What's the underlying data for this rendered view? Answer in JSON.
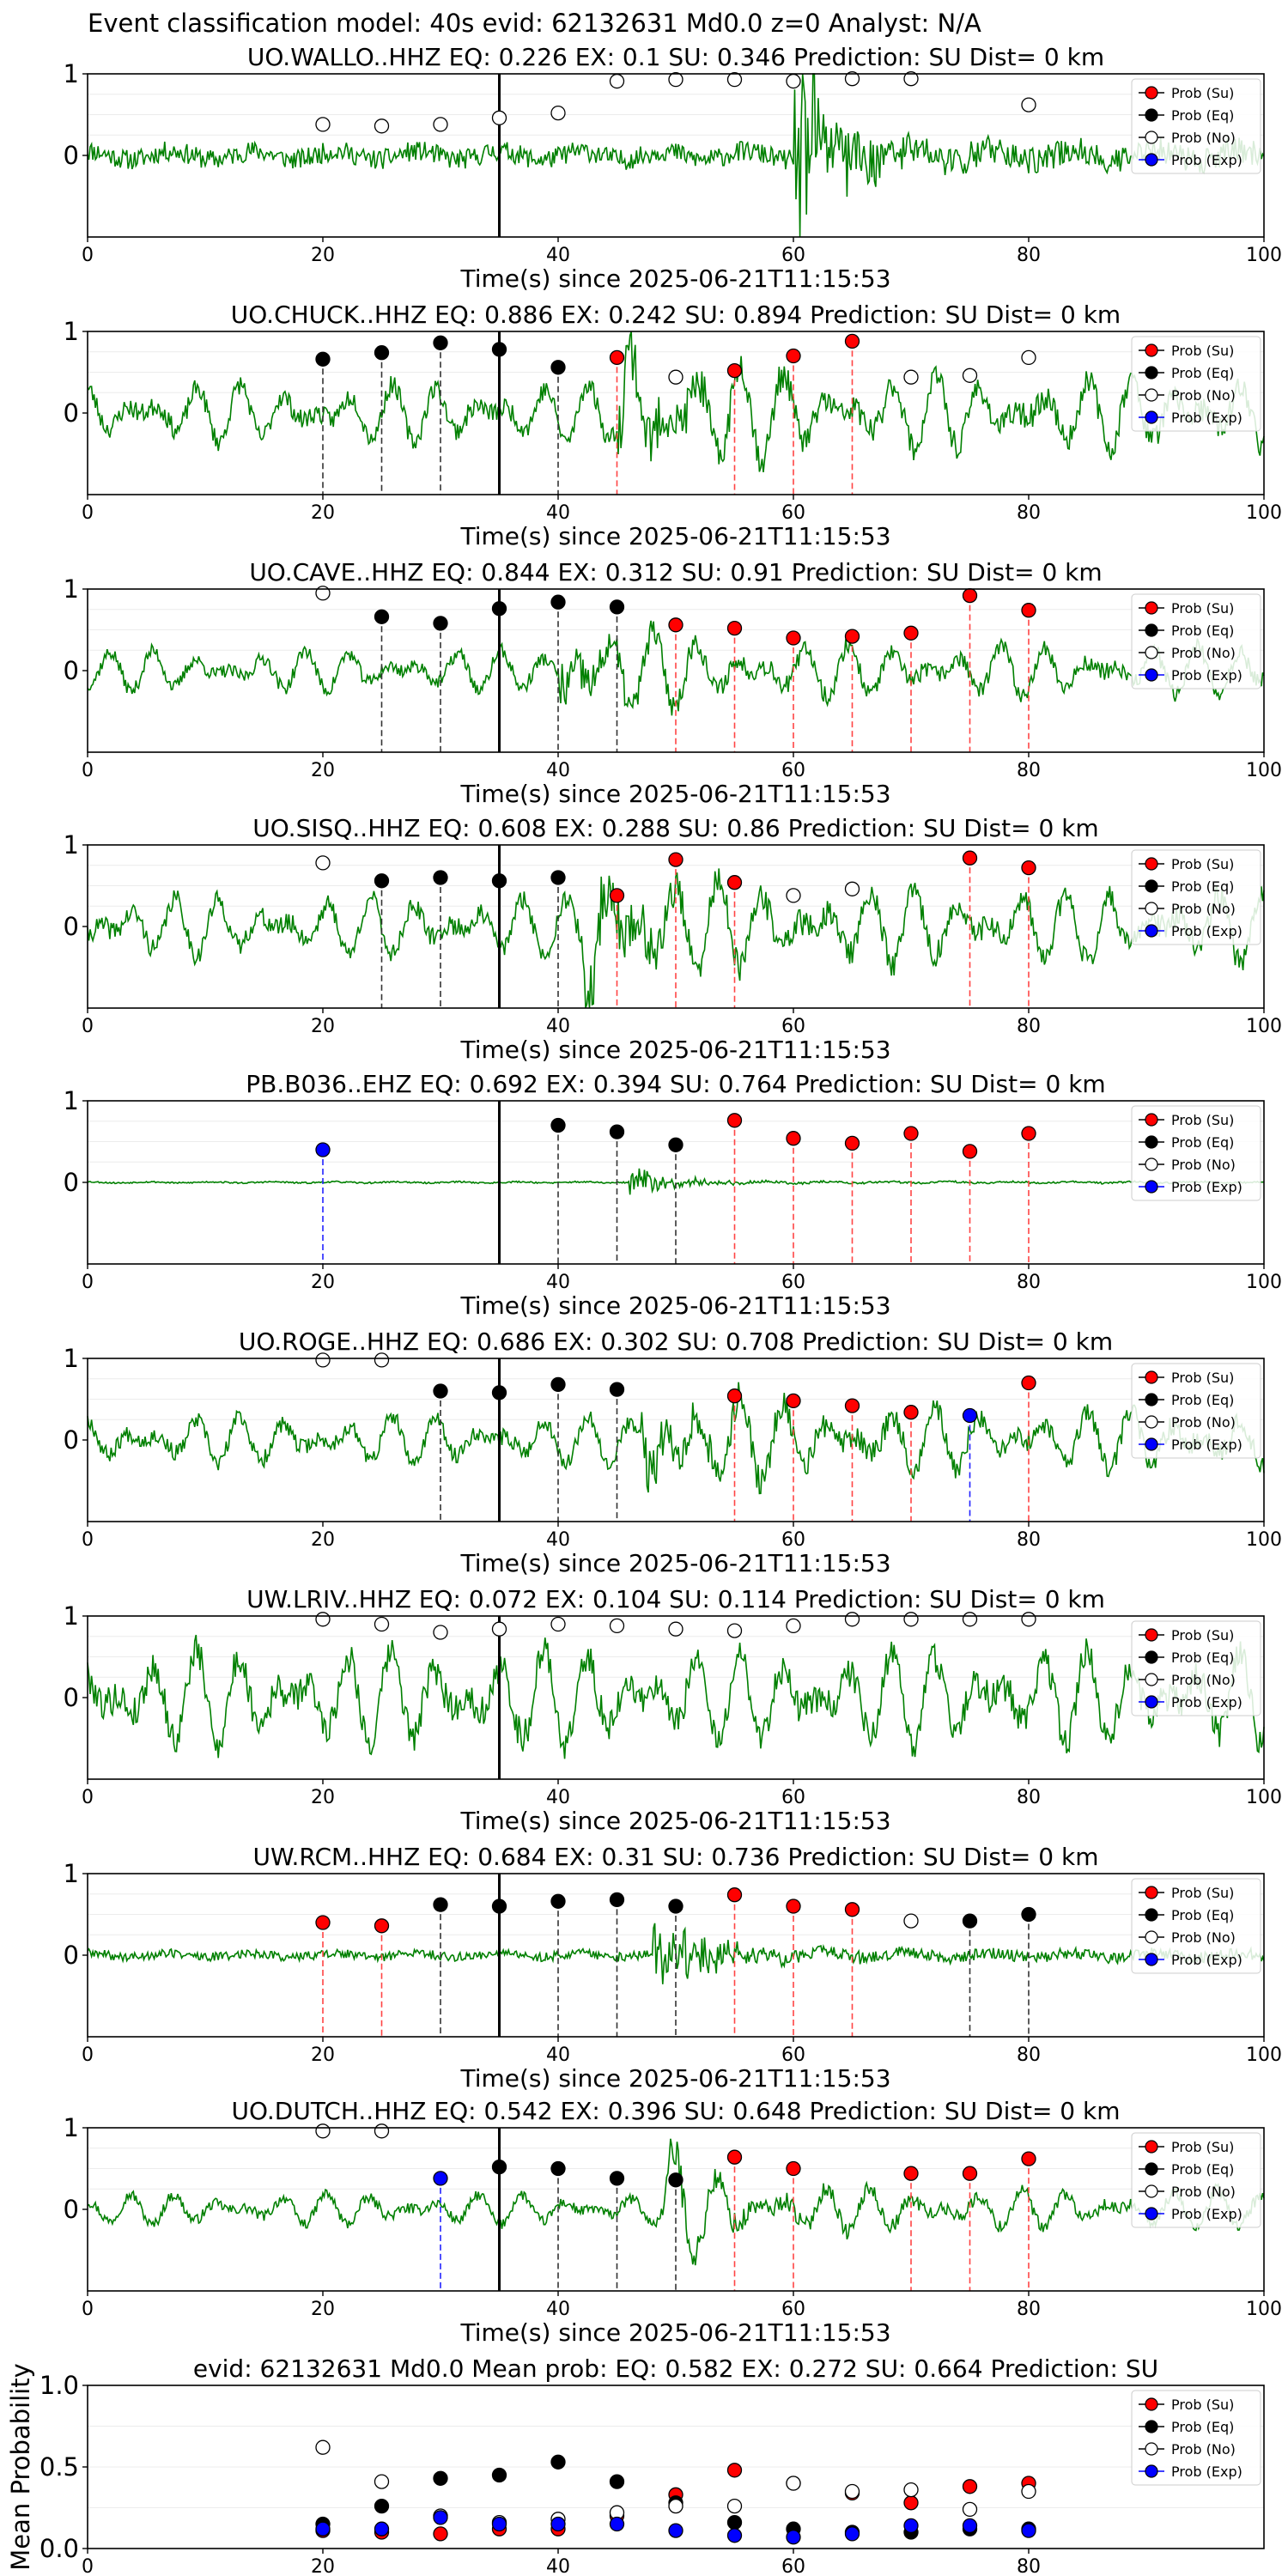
{
  "figure_title": "Event classification model: 40s evid: 62132631 Md0.0 z=0 Analyst: N/A",
  "colors": {
    "su": "#ff0000",
    "eq": "#000000",
    "no": "#ffffff",
    "exp": "#0000ff",
    "waveform": "#008000"
  },
  "legend": [
    {
      "key": "su",
      "label": "Prob (Su)"
    },
    {
      "key": "eq",
      "label": "Prob (Eq)"
    },
    {
      "key": "no",
      "label": "Prob (No)"
    },
    {
      "key": "exp",
      "label": "Prob (Exp)"
    }
  ],
  "chart_data": [
    {
      "type": "scatter",
      "title": "UO.WALLO..HHZ   EQ: 0.226  EX: 0.1  SU: 0.346   Prediction: SU    Dist= 0 km",
      "xlabel": "Time(s) since 2025-06-21T11:15:53",
      "xlim": [
        0,
        100
      ],
      "ylim": [
        -1,
        1
      ],
      "xticks": [
        "0",
        "20",
        "40",
        "60",
        "80",
        "100"
      ],
      "yticks": [
        "1",
        "0"
      ],
      "event_marker_x": 35,
      "legend_keys": [
        "su",
        "eq",
        "no",
        "exp"
      ],
      "waveform": {
        "amp": 0.22,
        "seed": 11,
        "style": "noisy",
        "burst_at": 60
      },
      "points": [
        {
          "x": 20,
          "y": 0.38,
          "cls": "no"
        },
        {
          "x": 25,
          "y": 0.36,
          "cls": "no"
        },
        {
          "x": 30,
          "y": 0.38,
          "cls": "no"
        },
        {
          "x": 35,
          "y": 0.46,
          "cls": "no"
        },
        {
          "x": 40,
          "y": 0.52,
          "cls": "no"
        },
        {
          "x": 45,
          "y": 0.91,
          "cls": "no"
        },
        {
          "x": 50,
          "y": 0.93,
          "cls": "no"
        },
        {
          "x": 55,
          "y": 0.93,
          "cls": "no"
        },
        {
          "x": 60,
          "y": 0.91,
          "cls": "no"
        },
        {
          "x": 65,
          "y": 0.94,
          "cls": "no"
        },
        {
          "x": 70,
          "y": 0.94,
          "cls": "no"
        },
        {
          "x": 80,
          "y": 0.62,
          "cls": "no"
        }
      ]
    },
    {
      "type": "scatter",
      "title": "UO.CHUCK..HHZ   EQ: 0.886  EX: 0.242  SU: 0.894   Prediction: SU    Dist= 0 km",
      "xlabel": "Time(s) since 2025-06-21T11:15:53",
      "xlim": [
        0,
        100
      ],
      "ylim": [
        -1,
        1
      ],
      "xticks": [
        "0",
        "20",
        "40",
        "60",
        "80",
        "100"
      ],
      "yticks": [
        "1",
        "0"
      ],
      "event_marker_x": 35,
      "legend_keys": [
        "su",
        "eq",
        "no",
        "exp"
      ],
      "waveform": {
        "amp": 0.6,
        "seed": 23,
        "style": "wavy",
        "burst_at": 45
      },
      "points": [
        {
          "x": 20,
          "y": 0.66,
          "cls": "eq"
        },
        {
          "x": 25,
          "y": 0.74,
          "cls": "eq"
        },
        {
          "x": 30,
          "y": 0.86,
          "cls": "eq"
        },
        {
          "x": 35,
          "y": 0.78,
          "cls": "eq"
        },
        {
          "x": 40,
          "y": 0.56,
          "cls": "eq"
        },
        {
          "x": 45,
          "y": 0.68,
          "cls": "su"
        },
        {
          "x": 50,
          "y": 0.44,
          "cls": "no"
        },
        {
          "x": 55,
          "y": 0.52,
          "cls": "su"
        },
        {
          "x": 60,
          "y": 0.7,
          "cls": "su"
        },
        {
          "x": 65,
          "y": 0.88,
          "cls": "su"
        },
        {
          "x": 70,
          "y": 0.44,
          "cls": "no"
        },
        {
          "x": 75,
          "y": 0.46,
          "cls": "no"
        },
        {
          "x": 80,
          "y": 0.68,
          "cls": "no"
        }
      ]
    },
    {
      "type": "scatter",
      "title": "UO.CAVE..HHZ   EQ: 0.844  EX: 0.312  SU: 0.91   Prediction: SU    Dist= 0 km",
      "xlabel": "Time(s) since 2025-06-21T11:15:53",
      "xlim": [
        0,
        100
      ],
      "ylim": [
        -1,
        1
      ],
      "xticks": [
        "0",
        "20",
        "40",
        "60",
        "80",
        "100"
      ],
      "yticks": [
        "1",
        "0"
      ],
      "event_marker_x": 35,
      "legend_keys": [
        "su",
        "eq",
        "no",
        "exp"
      ],
      "waveform": {
        "amp": 0.42,
        "seed": 37,
        "style": "wavy",
        "burst_at": 40
      },
      "points": [
        {
          "x": 20,
          "y": 0.95,
          "cls": "no"
        },
        {
          "x": 25,
          "y": 0.66,
          "cls": "eq"
        },
        {
          "x": 30,
          "y": 0.58,
          "cls": "eq"
        },
        {
          "x": 35,
          "y": 0.76,
          "cls": "eq"
        },
        {
          "x": 40,
          "y": 0.84,
          "cls": "eq"
        },
        {
          "x": 45,
          "y": 0.78,
          "cls": "eq"
        },
        {
          "x": 50,
          "y": 0.56,
          "cls": "su"
        },
        {
          "x": 55,
          "y": 0.52,
          "cls": "su"
        },
        {
          "x": 60,
          "y": 0.4,
          "cls": "su"
        },
        {
          "x": 65,
          "y": 0.42,
          "cls": "su"
        },
        {
          "x": 70,
          "y": 0.46,
          "cls": "su"
        },
        {
          "x": 75,
          "y": 0.92,
          "cls": "su"
        },
        {
          "x": 80,
          "y": 0.74,
          "cls": "su"
        }
      ]
    },
    {
      "type": "scatter",
      "title": "UO.SISQ..HHZ   EQ: 0.608  EX: 0.288  SU: 0.86   Prediction: SU    Dist= 0 km",
      "xlabel": "Time(s) since 2025-06-21T11:15:53",
      "xlim": [
        0,
        100
      ],
      "ylim": [
        -1,
        1
      ],
      "xticks": [
        "0",
        "20",
        "40",
        "60",
        "80",
        "100"
      ],
      "yticks": [
        "1",
        "0"
      ],
      "event_marker_x": 35,
      "legend_keys": [
        "su",
        "eq",
        "no",
        "exp"
      ],
      "waveform": {
        "amp": 0.6,
        "seed": 41,
        "style": "wavy",
        "burst_at": 42
      },
      "points": [
        {
          "x": 20,
          "y": 0.78,
          "cls": "no"
        },
        {
          "x": 25,
          "y": 0.56,
          "cls": "eq"
        },
        {
          "x": 30,
          "y": 0.6,
          "cls": "eq"
        },
        {
          "x": 35,
          "y": 0.56,
          "cls": "eq"
        },
        {
          "x": 40,
          "y": 0.6,
          "cls": "eq"
        },
        {
          "x": 45,
          "y": 0.38,
          "cls": "su"
        },
        {
          "x": 50,
          "y": 0.82,
          "cls": "su"
        },
        {
          "x": 55,
          "y": 0.54,
          "cls": "su"
        },
        {
          "x": 60,
          "y": 0.38,
          "cls": "no"
        },
        {
          "x": 65,
          "y": 0.46,
          "cls": "no"
        },
        {
          "x": 75,
          "y": 0.84,
          "cls": "su"
        },
        {
          "x": 80,
          "y": 0.72,
          "cls": "su"
        }
      ]
    },
    {
      "type": "scatter",
      "title": "PB.B036..EHZ   EQ: 0.692  EX: 0.394  SU: 0.764   Prediction: SU    Dist= 0 km",
      "xlabel": "Time(s) since 2025-06-21T11:15:53",
      "xlim": [
        0,
        100
      ],
      "ylim": [
        -1,
        1
      ],
      "xticks": [
        "0",
        "20",
        "40",
        "60",
        "80",
        "100"
      ],
      "yticks": [
        "1",
        "0"
      ],
      "event_marker_x": 35,
      "legend_keys": [
        "su",
        "eq",
        "no",
        "exp"
      ],
      "waveform": {
        "amp": 0.04,
        "seed": 53,
        "style": "flat",
        "burst_at": 46
      },
      "points": [
        {
          "x": 20,
          "y": 0.4,
          "cls": "exp"
        },
        {
          "x": 40,
          "y": 0.7,
          "cls": "eq"
        },
        {
          "x": 45,
          "y": 0.62,
          "cls": "eq"
        },
        {
          "x": 50,
          "y": 0.46,
          "cls": "eq"
        },
        {
          "x": 55,
          "y": 0.76,
          "cls": "su"
        },
        {
          "x": 60,
          "y": 0.54,
          "cls": "su"
        },
        {
          "x": 65,
          "y": 0.48,
          "cls": "su"
        },
        {
          "x": 70,
          "y": 0.6,
          "cls": "su"
        },
        {
          "x": 75,
          "y": 0.38,
          "cls": "su"
        },
        {
          "x": 80,
          "y": 0.6,
          "cls": "su"
        }
      ]
    },
    {
      "type": "scatter",
      "title": "UO.ROGE..HHZ   EQ: 0.686  EX: 0.302  SU: 0.708   Prediction: SU    Dist= 0 km",
      "xlabel": "Time(s) since 2025-06-21T11:15:53",
      "xlim": [
        0,
        100
      ],
      "ylim": [
        -1,
        1
      ],
      "xticks": [
        "0",
        "20",
        "40",
        "60",
        "80",
        "100"
      ],
      "yticks": [
        "1",
        "0"
      ],
      "event_marker_x": 35,
      "legend_keys": [
        "su",
        "eq",
        "no",
        "exp"
      ],
      "waveform": {
        "amp": 0.5,
        "seed": 67,
        "style": "wavy",
        "burst_at": 47
      },
      "points": [
        {
          "x": 20,
          "y": 0.98,
          "cls": "no"
        },
        {
          "x": 25,
          "y": 0.98,
          "cls": "no"
        },
        {
          "x": 30,
          "y": 0.6,
          "cls": "eq"
        },
        {
          "x": 35,
          "y": 0.58,
          "cls": "eq"
        },
        {
          "x": 40,
          "y": 0.68,
          "cls": "eq"
        },
        {
          "x": 45,
          "y": 0.62,
          "cls": "eq"
        },
        {
          "x": 55,
          "y": 0.54,
          "cls": "su"
        },
        {
          "x": 60,
          "y": 0.48,
          "cls": "su"
        },
        {
          "x": 65,
          "y": 0.42,
          "cls": "su"
        },
        {
          "x": 70,
          "y": 0.34,
          "cls": "su"
        },
        {
          "x": 75,
          "y": 0.3,
          "cls": "exp"
        },
        {
          "x": 80,
          "y": 0.7,
          "cls": "su"
        }
      ]
    },
    {
      "type": "scatter",
      "title": "UW.LRIV..HHZ   EQ: 0.072  EX: 0.104  SU: 0.114   Prediction: SU    Dist= 0 km",
      "xlabel": "Time(s) since 2025-06-21T11:15:53",
      "xlim": [
        0,
        100
      ],
      "ylim": [
        -1,
        1
      ],
      "xticks": [
        "0",
        "20",
        "40",
        "60",
        "80",
        "100"
      ],
      "yticks": [
        "1",
        "0"
      ],
      "event_marker_x": 35,
      "legend_keys": [
        "su",
        "eq",
        "no",
        "exp"
      ],
      "waveform": {
        "amp": 0.78,
        "seed": 79,
        "style": "wavy",
        "burst_at": -1
      },
      "points": [
        {
          "x": 20,
          "y": 0.96,
          "cls": "no"
        },
        {
          "x": 25,
          "y": 0.9,
          "cls": "no"
        },
        {
          "x": 30,
          "y": 0.8,
          "cls": "no"
        },
        {
          "x": 35,
          "y": 0.84,
          "cls": "no"
        },
        {
          "x": 40,
          "y": 0.9,
          "cls": "no"
        },
        {
          "x": 45,
          "y": 0.88,
          "cls": "no"
        },
        {
          "x": 50,
          "y": 0.84,
          "cls": "no"
        },
        {
          "x": 55,
          "y": 0.82,
          "cls": "no"
        },
        {
          "x": 60,
          "y": 0.88,
          "cls": "no"
        },
        {
          "x": 65,
          "y": 0.96,
          "cls": "no"
        },
        {
          "x": 70,
          "y": 0.96,
          "cls": "no"
        },
        {
          "x": 75,
          "y": 0.96,
          "cls": "no"
        },
        {
          "x": 80,
          "y": 0.96,
          "cls": "no"
        }
      ]
    },
    {
      "type": "scatter",
      "title": "UW.RCM..HHZ   EQ: 0.684  EX: 0.31  SU: 0.736   Prediction: SU    Dist= 0 km",
      "xlabel": "Time(s) since 2025-06-21T11:15:53",
      "xlim": [
        0,
        100
      ],
      "ylim": [
        -1,
        1
      ],
      "xticks": [
        "0",
        "20",
        "40",
        "60",
        "80",
        "100"
      ],
      "yticks": [
        "1",
        "0"
      ],
      "event_marker_x": 35,
      "legend_keys": [
        "su",
        "eq",
        "no",
        "exp"
      ],
      "waveform": {
        "amp": 0.1,
        "seed": 89,
        "style": "noisy",
        "burst_at": 48
      },
      "points": [
        {
          "x": 20,
          "y": 0.4,
          "cls": "su"
        },
        {
          "x": 25,
          "y": 0.36,
          "cls": "su"
        },
        {
          "x": 30,
          "y": 0.62,
          "cls": "eq"
        },
        {
          "x": 35,
          "y": 0.6,
          "cls": "eq"
        },
        {
          "x": 40,
          "y": 0.66,
          "cls": "eq"
        },
        {
          "x": 45,
          "y": 0.68,
          "cls": "eq"
        },
        {
          "x": 50,
          "y": 0.6,
          "cls": "eq"
        },
        {
          "x": 55,
          "y": 0.74,
          "cls": "su"
        },
        {
          "x": 60,
          "y": 0.6,
          "cls": "su"
        },
        {
          "x": 65,
          "y": 0.56,
          "cls": "su"
        },
        {
          "x": 70,
          "y": 0.42,
          "cls": "no"
        },
        {
          "x": 75,
          "y": 0.42,
          "cls": "eq"
        },
        {
          "x": 80,
          "y": 0.5,
          "cls": "eq"
        }
      ]
    },
    {
      "type": "scatter",
      "title": "UO.DUTCH..HHZ   EQ: 0.542  EX: 0.396  SU: 0.648   Prediction: SU    Dist= 0 km",
      "xlabel": "Time(s) since 2025-06-21T11:15:53",
      "xlim": [
        0,
        100
      ],
      "ylim": [
        -1,
        1
      ],
      "xticks": [
        "0",
        "20",
        "40",
        "60",
        "80",
        "100"
      ],
      "yticks": [
        "1",
        "0"
      ],
      "event_marker_x": 35,
      "legend_keys": [
        "su",
        "eq",
        "no",
        "exp"
      ],
      "waveform": {
        "amp": 0.32,
        "seed": 97,
        "style": "wavy",
        "burst_at": 49
      },
      "points": [
        {
          "x": 20,
          "y": 0.96,
          "cls": "no"
        },
        {
          "x": 25,
          "y": 0.96,
          "cls": "no"
        },
        {
          "x": 30,
          "y": 0.38,
          "cls": "exp"
        },
        {
          "x": 35,
          "y": 0.52,
          "cls": "eq"
        },
        {
          "x": 40,
          "y": 0.5,
          "cls": "eq"
        },
        {
          "x": 45,
          "y": 0.38,
          "cls": "eq"
        },
        {
          "x": 50,
          "y": 0.36,
          "cls": "eq"
        },
        {
          "x": 55,
          "y": 0.64,
          "cls": "su"
        },
        {
          "x": 60,
          "y": 0.5,
          "cls": "su"
        },
        {
          "x": 70,
          "y": 0.44,
          "cls": "su"
        },
        {
          "x": 75,
          "y": 0.44,
          "cls": "su"
        },
        {
          "x": 80,
          "y": 0.62,
          "cls": "su"
        }
      ]
    },
    {
      "type": "scatter",
      "title": "evid: 62132631  Md0.0    Mean prob:    EQ: 0.582  EX: 0.272  SU: 0.664   Prediction: SU",
      "xlabel": "",
      "ylabel": "Mean Probability",
      "xlim": [
        0,
        100
      ],
      "ylim": [
        0,
        1
      ],
      "xticks": [
        "0",
        "20",
        "40",
        "60",
        "80"
      ],
      "yticks": [
        "1.0",
        "0.5",
        "0.0"
      ],
      "legend_keys": [
        "su",
        "eq",
        "no",
        "exp"
      ],
      "series": [
        {
          "name": "Prob (Su)",
          "cls": "su",
          "x": [
            20,
            25,
            30,
            35,
            40,
            45,
            50,
            55,
            60,
            65,
            70,
            75,
            80
          ],
          "values": [
            0.11,
            0.1,
            0.09,
            0.12,
            0.12,
            0.2,
            0.33,
            0.48,
            0.4,
            0.34,
            0.28,
            0.38,
            0.4
          ]
        },
        {
          "name": "Prob (Eq)",
          "cls": "eq",
          "x": [
            20,
            25,
            30,
            35,
            40,
            45,
            50,
            55,
            60,
            65,
            70,
            75,
            80
          ],
          "values": [
            0.15,
            0.26,
            0.43,
            0.45,
            0.53,
            0.41,
            0.28,
            0.16,
            0.12,
            0.1,
            0.1,
            0.12,
            0.12
          ]
        },
        {
          "name": "Prob (No)",
          "cls": "no",
          "x": [
            20,
            25,
            30,
            35,
            40,
            45,
            50,
            55,
            60,
            65,
            70,
            75,
            80
          ],
          "values": [
            0.62,
            0.41,
            0.2,
            0.16,
            0.18,
            0.22,
            0.26,
            0.26,
            0.4,
            0.35,
            0.36,
            0.24,
            0.35
          ]
        },
        {
          "name": "Prob (Exp)",
          "cls": "exp",
          "x": [
            20,
            25,
            30,
            35,
            40,
            45,
            50,
            55,
            60,
            65,
            70,
            75,
            80
          ],
          "values": [
            0.12,
            0.12,
            0.19,
            0.15,
            0.15,
            0.15,
            0.11,
            0.08,
            0.07,
            0.09,
            0.14,
            0.14,
            0.11
          ]
        }
      ]
    }
  ]
}
